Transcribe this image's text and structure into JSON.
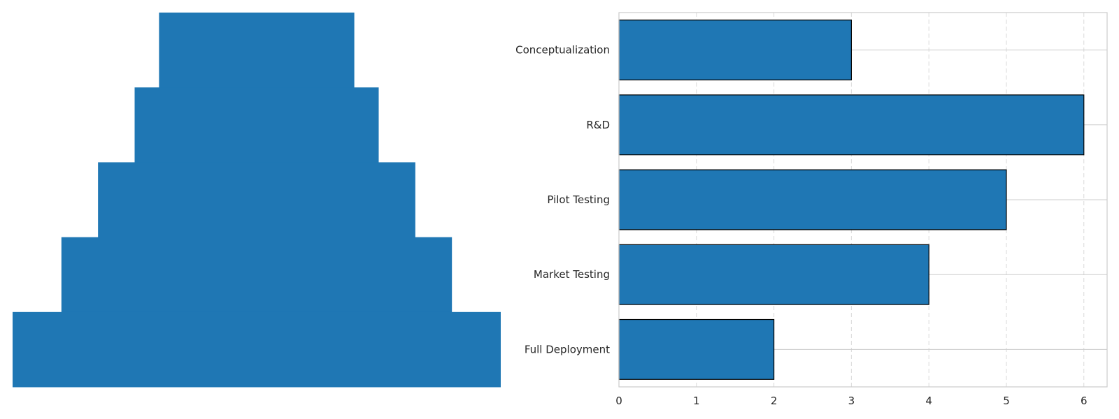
{
  "chart_data": [
    {
      "type": "funnel",
      "title": "",
      "categories": [
        "Conceptualization",
        "R&D",
        "Pilot Testing",
        "Market Testing",
        "Full Deployment"
      ],
      "values": [
        4,
        5,
        6.5,
        8,
        10
      ],
      "axes_visible": false,
      "color": "#1f77b4"
    },
    {
      "type": "bar",
      "orientation": "horizontal",
      "title": "",
      "xlabel": "",
      "ylabel": "",
      "categories": [
        "Conceptualization",
        "R&D",
        "Pilot Testing",
        "Market Testing",
        "Full Deployment"
      ],
      "values": [
        3,
        6,
        5,
        4,
        2
      ],
      "xlim": [
        0,
        6.3
      ],
      "xticks": [
        0,
        1,
        2,
        3,
        4,
        5,
        6
      ],
      "grid": true,
      "bar_color": "#1f77b4",
      "edge_color": "#000000"
    }
  ]
}
